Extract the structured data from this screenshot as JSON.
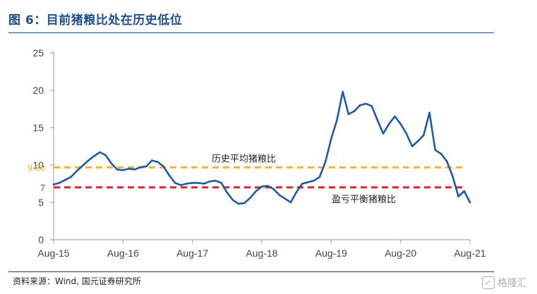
{
  "header": {
    "title": "图 6：目前猪粮比处在历史低位"
  },
  "footer": {
    "source": "资料来源：Wind, 国元证券研究所",
    "watermark": "格隆汇"
  },
  "chart_data": {
    "type": "line",
    "title": "图 6：目前猪粮比处在历史低位",
    "xlabel": "",
    "ylabel": "",
    "ylim": [
      0,
      25
    ],
    "yticks": [
      0,
      5,
      10,
      15,
      20,
      25
    ],
    "x_tick_labels": [
      "Aug-15",
      "Aug-16",
      "Aug-17",
      "Aug-18",
      "Aug-19",
      "Aug-20",
      "Aug-21"
    ],
    "x_tick_dates": [
      "2015-08",
      "2016-08",
      "2017-08",
      "2018-08",
      "2019-08",
      "2020-08",
      "2021-08"
    ],
    "grid": false,
    "legend": "none",
    "series_color": "#1f5aa6",
    "series": [
      {
        "x": [
          "2015-08",
          "2015-09",
          "2015-10",
          "2015-11",
          "2015-12",
          "2016-01",
          "2016-02",
          "2016-03",
          "2016-04",
          "2016-05",
          "2016-06",
          "2016-07",
          "2016-08",
          "2016-09",
          "2016-10",
          "2016-11",
          "2016-12",
          "2017-01",
          "2017-02",
          "2017-03",
          "2017-04",
          "2017-05",
          "2017-06",
          "2017-07",
          "2017-08",
          "2017-09",
          "2017-10",
          "2017-11",
          "2017-12",
          "2018-01",
          "2018-02",
          "2018-03",
          "2018-04",
          "2018-05",
          "2018-06",
          "2018-07",
          "2018-08",
          "2018-09",
          "2018-10",
          "2018-11",
          "2018-12",
          "2019-01",
          "2019-02",
          "2019-03",
          "2019-04",
          "2019-05",
          "2019-06",
          "2019-07",
          "2019-08",
          "2019-09",
          "2019-10",
          "2019-11",
          "2019-12",
          "2020-01",
          "2020-02",
          "2020-03",
          "2020-04",
          "2020-05",
          "2020-06",
          "2020-07",
          "2020-08",
          "2020-09",
          "2020-10",
          "2020-11",
          "2020-12",
          "2021-01",
          "2021-02",
          "2021-03",
          "2021-04",
          "2021-05",
          "2021-06",
          "2021-07",
          "2021-08"
        ],
        "values": [
          7.4,
          7.6,
          8.0,
          8.4,
          9.2,
          9.9,
          10.6,
          11.2,
          11.7,
          11.3,
          10.2,
          9.4,
          9.3,
          9.5,
          9.4,
          9.7,
          9.8,
          10.6,
          10.4,
          9.8,
          8.6,
          7.6,
          7.3,
          7.5,
          7.6,
          7.6,
          7.5,
          7.8,
          7.9,
          7.6,
          6.3,
          5.3,
          4.8,
          4.9,
          5.6,
          6.5,
          7.1,
          7.2,
          6.8,
          6.0,
          5.5,
          5.0,
          6.4,
          7.5,
          7.7,
          7.9,
          8.4,
          10.4,
          13.5,
          16.0,
          19.8,
          16.8,
          17.2,
          18.0,
          18.2,
          17.9,
          16.0,
          14.2,
          15.5,
          16.5,
          15.5,
          14.2,
          12.5,
          13.2,
          14.0,
          17.0,
          12.0,
          11.5,
          10.5,
          8.5,
          5.8,
          6.5,
          5.0
        ]
      }
    ],
    "reference_lines": [
      {
        "name": "历史平均猪粮比",
        "value": 9.68,
        "value_label": "9.68",
        "color": "#f2b632"
      },
      {
        "name": "盈亏平衡猪粮比",
        "value": 7,
        "value_label": "7",
        "color": "#e3232b"
      }
    ]
  }
}
